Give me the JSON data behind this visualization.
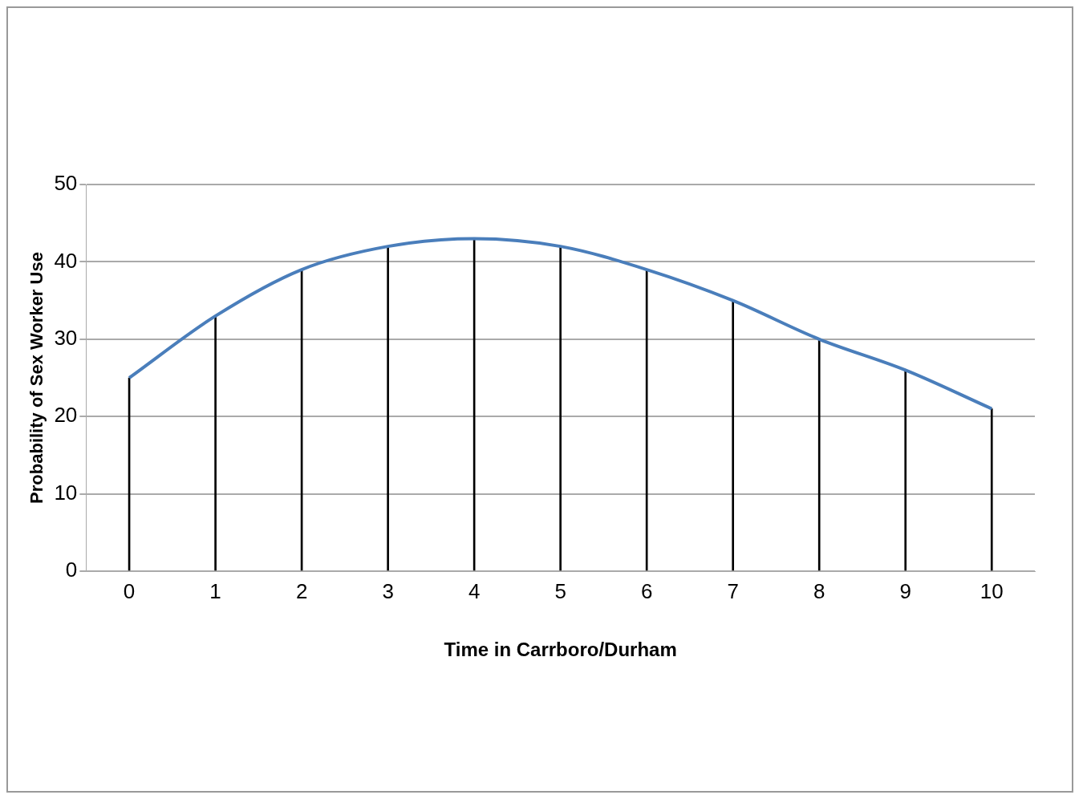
{
  "chart_data": {
    "type": "line",
    "xlabel": "Time in Carrboro/Durham",
    "ylabel": "Probability of Sex Worker Use",
    "categories": [
      "0",
      "1",
      "2",
      "3",
      "4",
      "5",
      "6",
      "7",
      "8",
      "9",
      "10"
    ],
    "series": [
      {
        "color": "#4a7ebb",
        "values": [
          25,
          33,
          39,
          42,
          43,
          42,
          39,
          35,
          30,
          26,
          21
        ]
      },
      {
        "type": "bar",
        "color": "#000000",
        "values": [
          25,
          33,
          39,
          42,
          43,
          42,
          39,
          35,
          30,
          26,
          21
        ]
      }
    ],
    "ylim": [
      0,
      50
    ],
    "yticks": [
      0,
      10,
      20,
      30,
      40,
      50
    ],
    "grid": "y",
    "legend": false,
    "marker": "none",
    "line_style": "solid"
  }
}
